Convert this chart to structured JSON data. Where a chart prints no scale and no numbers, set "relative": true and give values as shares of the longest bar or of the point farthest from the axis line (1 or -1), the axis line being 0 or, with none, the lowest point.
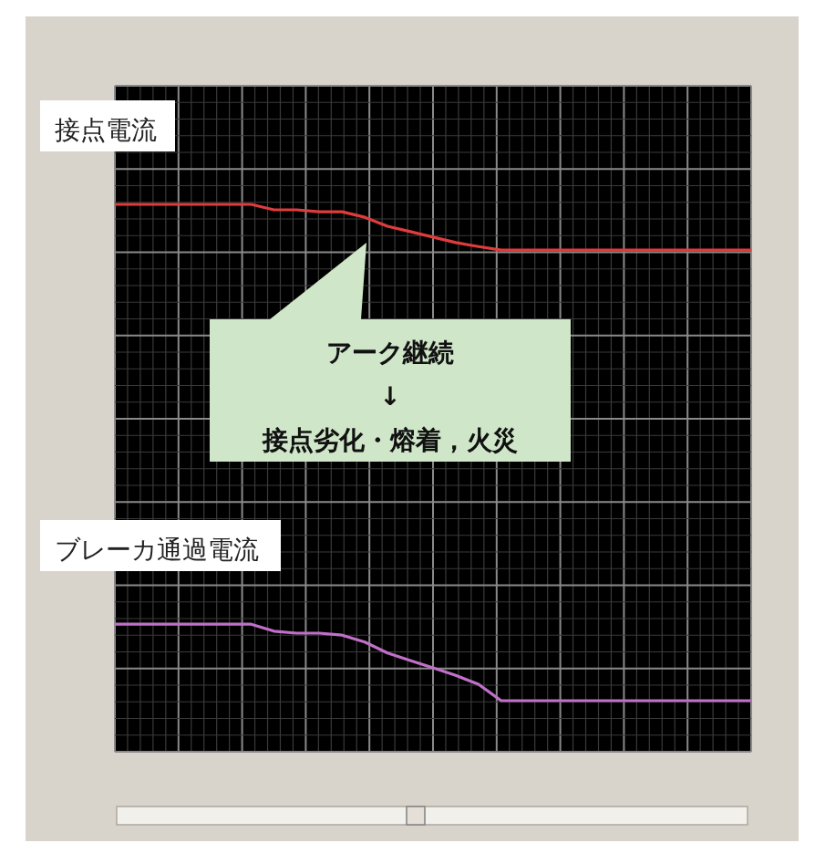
{
  "chart_data": {
    "type": "line",
    "relative": true,
    "grid": true,
    "marker": "none",
    "line_style": "solid",
    "categories": [
      null,
      null,
      null,
      null,
      null,
      null,
      null,
      null,
      null,
      null,
      null,
      null,
      null,
      null,
      null,
      null,
      null,
      null,
      null,
      null,
      null,
      null,
      null,
      null,
      null,
      null,
      null,
      null,
      null
    ],
    "series": [
      {
        "name": "接点電流",
        "color": "#e03c3c",
        "values": [
          1,
          1,
          1,
          1,
          1,
          1,
          1,
          0.989,
          0.989,
          0.985,
          0.985,
          0.974,
          0.956,
          0.945,
          0.934,
          0.923,
          0.915,
          0.908,
          0.908,
          0.908,
          0.908,
          0.908,
          0.908,
          0.908,
          0.908,
          0.908,
          0.908,
          0.908,
          0.908
        ]
      },
      {
        "name": "ブレーカ通過電流",
        "color": "#c070c8",
        "values": [
          0.154,
          0.154,
          0.154,
          0.154,
          0.154,
          0.154,
          0.154,
          0.14,
          0.136,
          0.136,
          0.132,
          0.118,
          0.096,
          0.081,
          0.066,
          0.051,
          0.033,
          0,
          0,
          0,
          0,
          0,
          0,
          0,
          0,
          0,
          0,
          0,
          0
        ]
      }
    ],
    "annotations": [
      "アーク継続\n↓\n接点劣化・熔着，火災"
    ]
  }
}
